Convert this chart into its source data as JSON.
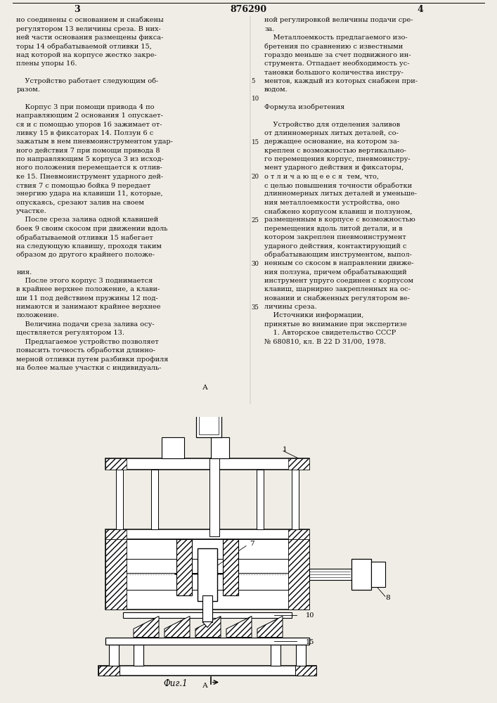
{
  "page_number_left": "3",
  "page_number_center": "876290",
  "page_number_right": "4",
  "col_left_text": [
    "но соединены с основанием и снабжены",
    "регулятором 13 величины среза. В них-",
    "ней части основания размещены фикса-",
    "торы 14 обрабатываемой отливки 15,",
    "над которой на корпусе жестко закре-",
    "плены упоры 16.",
    "",
    "    Устройство работает следующим об-",
    "разом.",
    "",
    "    Корпус 3 при помощи привода 4 по",
    "направляющим 2 основания 1 опускает-",
    "ся и с помощью упоров 16 зажимает от-",
    "ливку 15 в фиксаторах 14. Ползун 6 с",
    "зажатым в нем пневмоинструментом удар-",
    "ного действия 7 при помощи привода 8",
    "по направляющим 5 корпуса 3 из исход-",
    "ного положения перемещается к отлив-",
    "ке 15. Пневмоинструмент ударного дей-",
    "ствия 7 с помощью бойка 9 передает",
    "энергию удара на клавиши 11, которые,",
    "опускаясь, срезают залив на своем",
    "участке.",
    "    После среза залива одной клавишей",
    "боек 9 своим скосом при движении вдоль",
    "обрабатываемой отливки 15 набегает",
    "на следующую клавишу, проходя таким",
    "образом до другого крайнего положе-",
    "",
    "ния.",
    "    После этого корпус 3 поднимается",
    "в крайнее верхнее положение, а клави-",
    "ши 11 под действием пружины 12 под-",
    "нимаются и занимают крайнее верхнее",
    "положение.",
    "    Величина подачи среза залива осу-",
    "ществляется регулятором 13.",
    "    Предлагаемое устройство позволяет",
    "повысить точность обработки длинно-",
    "мерной отливки путем разбивки профиля",
    "на более малые участки с индивидуаль-"
  ],
  "col_right_text": [
    "ной регулировкой величины подачи сре-",
    "за.",
    "    Металлоемкость предлагаемого изо-",
    "бретения по сравнению с известными",
    "гораздо меньше за счет подвижного ин-",
    "струмента. Отпадает необходимость ус-",
    "тановки большого количества инстру-",
    "ментов, каждый из которых снабжен при-",
    "водом.",
    "",
    "Формула изобретения",
    "",
    "    Устройство для отделения заливов",
    "от длинномерных литых деталей, со-",
    "держащее основание, на котором за-",
    "креплен с возможностью вертикально-",
    "го перемещения корпус, пневмоинстру-",
    "мент ударного действия и фиксаторы,",
    "о т л и ч а ю щ е е с я  тем, что,",
    "с целью повышения точности обработки",
    "длинномерных литых деталей и уменьше-",
    "ния металлоемкости устройства, оно",
    "снабжено корпусом клавиш и ползуном,",
    "размещенным в корпусе с возможностью",
    "перемещения вдоль литой детали, и в",
    "котором закреплен пневмоинструмент",
    "ударного действия, контактирующий с",
    "обрабатывающим инструментом, выпол-",
    "ненным со скосом в направлении движе-",
    "ния ползуна, причем обрабатывающий",
    "инструмент упруго соединен с корпусом",
    "клавиш, шарнирно закрепленных на ос-",
    "новании и снабженных регулятором ве-",
    "личины среза.",
    "    Источники информации,",
    "принятые во внимание при экспертизе",
    "    1. Авторское свидетельство СССР",
    "№ 680810, кл. В 22 D 31/00, 1978."
  ],
  "line_number_map": {
    "7": "5",
    "9": "10",
    "14": "15",
    "18": "20",
    "23": "25",
    "28": "30",
    "33": "35"
  },
  "fig_label": "Фиг.1",
  "fig_arrow_label": "А",
  "bg_color": "#f0ede6",
  "text_color": "#111111",
  "font_size_main": 7.0,
  "font_size_header": 9.0
}
